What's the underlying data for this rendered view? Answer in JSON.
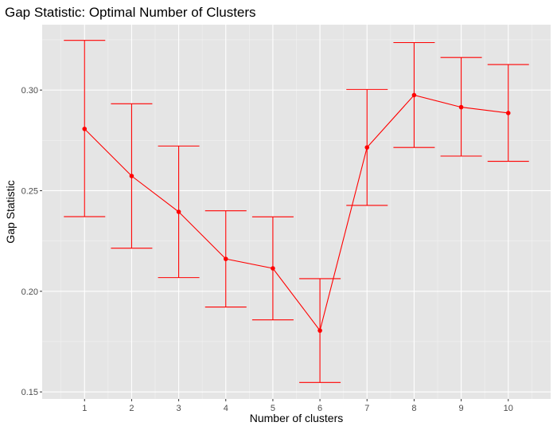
{
  "chart_data": {
    "type": "line",
    "title": "Gap Statistic: Optimal Number of Clusters",
    "xlabel": "Number of clusters",
    "ylabel": "Gap Statistic",
    "x": [
      1,
      2,
      3,
      4,
      5,
      6,
      7,
      8,
      9,
      10
    ],
    "xlim": [
      0.1,
      10.9
    ],
    "ylim": [
      0.1465,
      0.3325
    ],
    "yticks": [
      0.15,
      0.2,
      0.25,
      0.3
    ],
    "ytick_labels": [
      "0.15",
      "0.20",
      "0.25",
      "0.30"
    ],
    "xtick_labels": [
      "1",
      "2",
      "3",
      "4",
      "5",
      "6",
      "7",
      "8",
      "9",
      "10"
    ],
    "grid": true,
    "series": [
      {
        "values": [
          0.2807,
          0.2573,
          0.2395,
          0.2161,
          0.2114,
          0.1805,
          0.2715,
          0.2975,
          0.2915,
          0.2886
        ],
        "ymin": [
          0.2371,
          0.2214,
          0.2068,
          0.1922,
          0.1858,
          0.1547,
          0.2427,
          0.2715,
          0.2672,
          0.2646
        ],
        "ymax": [
          0.3247,
          0.2932,
          0.2722,
          0.24,
          0.237,
          0.2063,
          0.3003,
          0.3236,
          0.3162,
          0.3127
        ],
        "color": "#ff0000"
      }
    ],
    "colors": {
      "panel_background": "#e5e5e5",
      "grid_major": "#ffffff",
      "grid_minor": "#f2f2f2",
      "series": "#ff0000"
    }
  }
}
